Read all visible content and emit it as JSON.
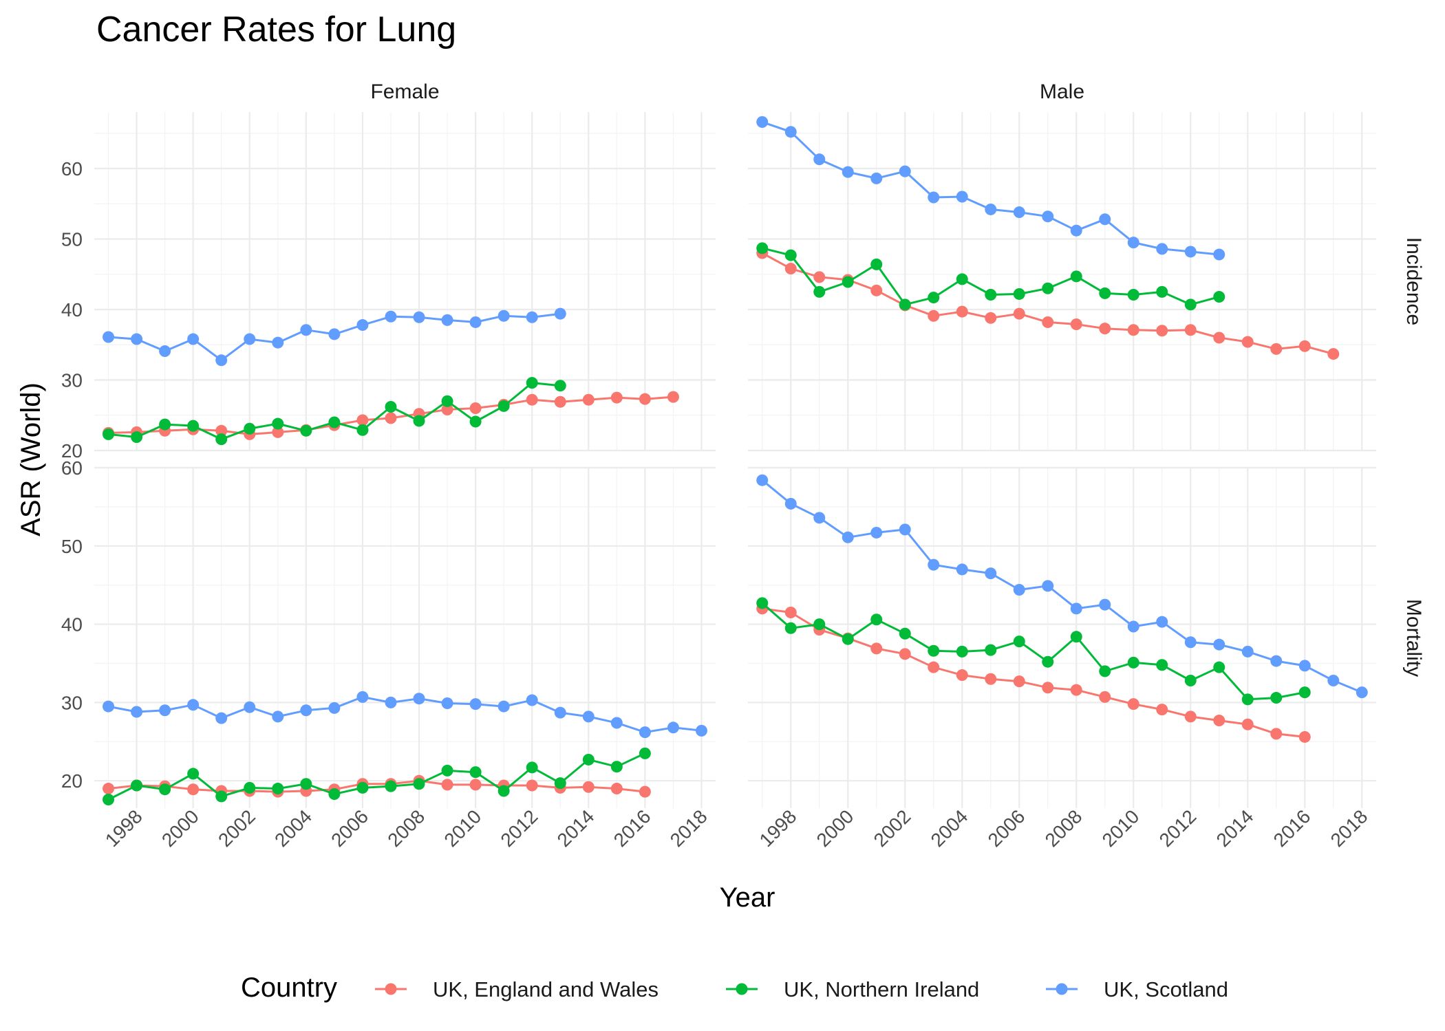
{
  "chart_data": {
    "type": "line",
    "title": "Cancer Rates for Lung",
    "xlabel": "Year",
    "ylabel": "ASR (World)",
    "x_ticks": [
      "1998",
      "2000",
      "2002",
      "2004",
      "2006",
      "2008",
      "2010",
      "2012",
      "2014",
      "2016",
      "2018"
    ],
    "xlim": [
      1996.5,
      2018.5
    ],
    "columns": [
      "Female",
      "Male"
    ],
    "rows": [
      "Incidence",
      "Mortality"
    ],
    "grid": true,
    "legend": {
      "title": "Country",
      "position": "bottom",
      "entries": [
        "UK, England and Wales",
        "UK, Northern Ireland",
        "UK, Scotland"
      ]
    },
    "colors": {
      "UK, England and Wales": "#F8766D",
      "UK, Northern Ireland": "#00BA38",
      "UK, Scotland": "#619CFF"
    },
    "row_scales": {
      "Incidence": {
        "ylim": [
          20,
          68
        ],
        "ticks": [
          20,
          30,
          40,
          50,
          60
        ]
      },
      "Mortality": {
        "ylim": [
          16.5,
          60
        ],
        "ticks": [
          20,
          30,
          40,
          50,
          60
        ]
      }
    },
    "panels": [
      {
        "column": "Female",
        "row": "Incidence",
        "series": [
          {
            "name": "UK, England and Wales",
            "x": [
              1997,
              1998,
              1999,
              2000,
              2001,
              2002,
              2003,
              2004,
              2005,
              2006,
              2007,
              2008,
              2009,
              2010,
              2011,
              2012,
              2013,
              2014,
              2015,
              2016,
              2017
            ],
            "y": [
              22.5,
              22.6,
              22.8,
              23.0,
              22.8,
              22.3,
              22.6,
              22.9,
              23.6,
              24.3,
              24.6,
              25.2,
              25.8,
              26.0,
              26.5,
              27.2,
              26.9,
              27.2,
              27.5,
              27.3,
              27.6
            ]
          },
          {
            "name": "UK, Northern Ireland",
            "x": [
              1997,
              1998,
              1999,
              2000,
              2001,
              2002,
              2003,
              2004,
              2005,
              2006,
              2007,
              2008,
              2009,
              2010,
              2011,
              2012,
              2013
            ],
            "y": [
              22.3,
              21.9,
              23.7,
              23.5,
              21.6,
              23.1,
              23.8,
              22.8,
              24.0,
              22.9,
              26.2,
              24.2,
              27.0,
              24.1,
              26.3,
              29.6,
              29.2
            ]
          },
          {
            "name": "UK, Scotland",
            "x": [
              1997,
              1998,
              1999,
              2000,
              2001,
              2002,
              2003,
              2004,
              2005,
              2006,
              2007,
              2008,
              2009,
              2010,
              2011,
              2012,
              2013
            ],
            "y": [
              36.1,
              35.8,
              34.1,
              35.8,
              32.8,
              35.8,
              35.3,
              37.1,
              36.5,
              37.8,
              39.0,
              38.9,
              38.5,
              38.2,
              39.1,
              38.9,
              39.4
            ]
          }
        ]
      },
      {
        "column": "Male",
        "row": "Incidence",
        "series": [
          {
            "name": "UK, England and Wales",
            "x": [
              1997,
              1998,
              1999,
              2000,
              2001,
              2002,
              2003,
              2004,
              2005,
              2006,
              2007,
              2008,
              2009,
              2010,
              2011,
              2012,
              2013,
              2014,
              2015,
              2016,
              2017
            ],
            "y": [
              48.0,
              45.8,
              44.6,
              44.2,
              42.7,
              40.6,
              39.1,
              39.7,
              38.8,
              39.4,
              38.2,
              37.9,
              37.3,
              37.1,
              37.0,
              37.1,
              36.0,
              35.4,
              34.4,
              34.8,
              33.7
            ]
          },
          {
            "name": "UK, Northern Ireland",
            "x": [
              1997,
              1998,
              1999,
              2000,
              2001,
              2002,
              2003,
              2004,
              2005,
              2006,
              2007,
              2008,
              2009,
              2010,
              2011,
              2012,
              2013
            ],
            "y": [
              48.7,
              47.7,
              42.5,
              43.9,
              46.4,
              40.7,
              41.7,
              44.3,
              42.1,
              42.2,
              43.0,
              44.7,
              42.3,
              42.1,
              42.5,
              40.7,
              41.8
            ]
          },
          {
            "name": "UK, Scotland",
            "x": [
              1997,
              1998,
              1999,
              2000,
              2001,
              2002,
              2003,
              2004,
              2005,
              2006,
              2007,
              2008,
              2009,
              2010,
              2011,
              2012,
              2013
            ],
            "y": [
              66.6,
              65.2,
              61.3,
              59.5,
              58.6,
              59.6,
              55.9,
              56.0,
              54.2,
              53.8,
              53.2,
              51.2,
              52.8,
              49.5,
              48.6,
              48.2,
              47.8
            ]
          }
        ]
      },
      {
        "column": "Female",
        "row": "Mortality",
        "series": [
          {
            "name": "UK, England and Wales",
            "x": [
              1997,
              1998,
              1999,
              2000,
              2001,
              2002,
              2003,
              2004,
              2005,
              2006,
              2007,
              2008,
              2009,
              2010,
              2011,
              2012,
              2013,
              2014,
              2015,
              2016
            ],
            "y": [
              19.0,
              19.4,
              19.3,
              18.9,
              18.7,
              18.7,
              18.6,
              18.7,
              18.9,
              19.6,
              19.6,
              20.0,
              19.5,
              19.5,
              19.4,
              19.4,
              19.1,
              19.2,
              19.0,
              18.6
            ]
          },
          {
            "name": "UK, Northern Ireland",
            "x": [
              1997,
              1998,
              1999,
              2000,
              2001,
              2002,
              2003,
              2004,
              2005,
              2006,
              2007,
              2008,
              2009,
              2010,
              2011,
              2012,
              2013,
              2014,
              2015,
              2016
            ],
            "y": [
              17.6,
              19.4,
              18.9,
              20.9,
              18.0,
              19.1,
              19.0,
              19.6,
              18.3,
              19.1,
              19.3,
              19.6,
              21.3,
              21.1,
              18.7,
              21.7,
              19.7,
              22.7,
              21.8,
              23.5
            ]
          },
          {
            "name": "UK, Scotland",
            "x": [
              1997,
              1998,
              1999,
              2000,
              2001,
              2002,
              2003,
              2004,
              2005,
              2006,
              2007,
              2008,
              2009,
              2010,
              2011,
              2012,
              2013,
              2014,
              2015,
              2016,
              2017,
              2018
            ],
            "y": [
              29.5,
              28.8,
              29.0,
              29.7,
              28.0,
              29.4,
              28.2,
              29.0,
              29.3,
              30.7,
              30.0,
              30.5,
              29.9,
              29.8,
              29.5,
              30.3,
              28.7,
              28.2,
              27.4,
              26.2,
              26.8,
              26.4
            ]
          }
        ]
      },
      {
        "column": "Male",
        "row": "Mortality",
        "series": [
          {
            "name": "UK, England and Wales",
            "x": [
              1997,
              1998,
              1999,
              2000,
              2001,
              2002,
              2003,
              2004,
              2005,
              2006,
              2007,
              2008,
              2009,
              2010,
              2011,
              2012,
              2013,
              2014,
              2015,
              2016
            ],
            "y": [
              42.0,
              41.5,
              39.3,
              38.2,
              36.9,
              36.2,
              34.5,
              33.5,
              33.0,
              32.7,
              31.9,
              31.6,
              30.7,
              29.8,
              29.1,
              28.2,
              27.7,
              27.2,
              26.0,
              25.6
            ]
          },
          {
            "name": "UK, Northern Ireland",
            "x": [
              1997,
              1998,
              1999,
              2000,
              2001,
              2002,
              2003,
              2004,
              2005,
              2006,
              2007,
              2008,
              2009,
              2010,
              2011,
              2012,
              2013,
              2014,
              2015,
              2016
            ],
            "y": [
              42.7,
              39.5,
              40.0,
              38.1,
              40.6,
              38.8,
              36.6,
              36.5,
              36.7,
              37.8,
              35.2,
              38.4,
              34.0,
              35.1,
              34.8,
              32.8,
              34.5,
              30.4,
              30.6,
              31.3
            ]
          },
          {
            "name": "UK, Scotland",
            "x": [
              1997,
              1998,
              1999,
              2000,
              2001,
              2002,
              2003,
              2004,
              2005,
              2006,
              2007,
              2008,
              2009,
              2010,
              2011,
              2012,
              2013,
              2014,
              2015,
              2016,
              2017,
              2018
            ],
            "y": [
              58.4,
              55.4,
              53.6,
              51.1,
              51.7,
              52.1,
              47.6,
              47.0,
              46.5,
              44.4,
              44.9,
              42.0,
              42.5,
              39.7,
              40.3,
              37.7,
              37.4,
              36.5,
              35.3,
              34.7,
              32.8,
              31.3
            ]
          }
        ]
      }
    ]
  }
}
